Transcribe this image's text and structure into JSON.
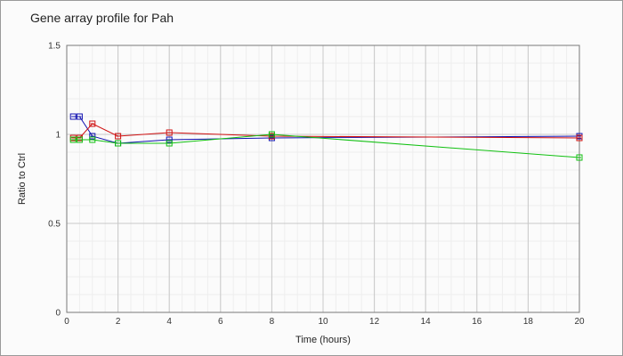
{
  "chart_data": {
    "type": "line",
    "title": "Gene array profile for Pah",
    "xlabel": "Time (hours)",
    "ylabel": "Ratio to Ctrl",
    "xlim": [
      0,
      20
    ],
    "ylim": [
      0,
      1.5
    ],
    "xticks": [
      0,
      2,
      4,
      6,
      8,
      10,
      12,
      14,
      16,
      18,
      20
    ],
    "yticks": [
      0,
      0.5,
      1,
      1.5
    ],
    "ytick_labels": [
      "0",
      "0.5",
      "1",
      "1.5"
    ],
    "grid": true,
    "legend": "none",
    "series": [
      {
        "color": "#1010b0",
        "x": [
          0.25,
          0.5,
          1,
          2,
          4,
          8,
          20
        ],
        "y": [
          1.1,
          1.1,
          0.99,
          0.95,
          0.97,
          0.98,
          0.99
        ]
      },
      {
        "color": "#d01010",
        "x": [
          0.25,
          0.5,
          1,
          2,
          4,
          8,
          20
        ],
        "y": [
          0.98,
          0.98,
          1.06,
          0.99,
          1.01,
          0.99,
          0.98
        ]
      },
      {
        "color": "#10c010",
        "x": [
          0.25,
          0.5,
          1,
          2,
          4,
          8,
          20
        ],
        "y": [
          0.97,
          0.97,
          0.97,
          0.95,
          0.95,
          1.0,
          0.87
        ]
      }
    ]
  }
}
